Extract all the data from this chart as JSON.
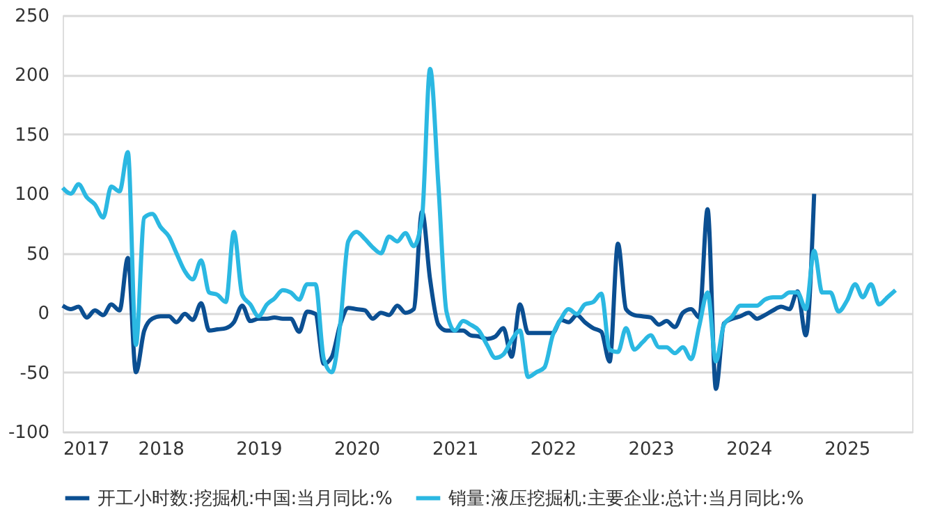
{
  "chart_data": {
    "type": "line",
    "x": [
      "2017-01",
      "2017-02",
      "2017-03",
      "2017-04",
      "2017-05",
      "2017-06",
      "2017-07",
      "2017-08",
      "2017-09",
      "2017-10",
      "2017-11",
      "2017-12",
      "2018-01",
      "2018-02",
      "2018-03",
      "2018-04",
      "2018-05",
      "2018-06",
      "2018-07",
      "2018-08",
      "2018-09",
      "2018-10",
      "2018-11",
      "2018-12",
      "2019-01",
      "2019-02",
      "2019-03",
      "2019-04",
      "2019-05",
      "2019-06",
      "2019-07",
      "2019-08",
      "2019-09",
      "2019-10",
      "2019-11",
      "2019-12",
      "2020-01",
      "2020-02",
      "2020-03",
      "2020-04",
      "2020-05",
      "2020-06",
      "2020-07",
      "2020-08",
      "2020-09",
      "2020-10",
      "2020-11",
      "2020-12",
      "2021-01",
      "2021-02",
      "2021-03",
      "2021-04",
      "2021-05",
      "2021-06",
      "2021-07",
      "2021-08",
      "2021-09",
      "2021-10",
      "2021-11",
      "2021-12",
      "2022-01",
      "2022-02",
      "2022-03",
      "2022-04",
      "2022-05",
      "2022-06",
      "2022-07",
      "2022-08",
      "2022-09",
      "2022-10",
      "2022-11",
      "2022-12",
      "2023-01",
      "2023-02",
      "2023-03",
      "2023-04",
      "2023-05",
      "2023-06",
      "2023-07",
      "2023-08",
      "2023-09",
      "2023-10",
      "2023-11",
      "2023-12",
      "2024-01",
      "2024-02",
      "2024-03",
      "2024-04",
      "2024-05",
      "2024-06",
      "2024-07",
      "2024-08",
      "2024-09",
      "2024-10",
      "2024-11",
      "2024-12",
      "2025-01",
      "2025-02",
      "2025-03",
      "2025-04",
      "2025-05",
      "2025-06",
      "2025-07"
    ],
    "series": [
      {
        "name": "开工小时数:挖掘机:中国:当月同比:%",
        "color": "#0b4f92",
        "values": [
          6,
          3,
          5,
          -4,
          2,
          -2,
          7,
          2,
          46,
          -50,
          -15,
          -5,
          -3,
          -3,
          -8,
          -1,
          -6,
          8,
          -15,
          -14,
          -13,
          -8,
          6,
          -7,
          -5,
          -5,
          -4,
          -5,
          -5,
          -16,
          1,
          -1,
          -43,
          -37,
          -10,
          4,
          3,
          2,
          -5,
          0,
          -2,
          6,
          0,
          3,
          85,
          28,
          -10,
          -15,
          -15,
          -15,
          -19,
          -20,
          -22,
          -20,
          -13,
          -37,
          7,
          -17,
          -17,
          -17,
          -17,
          -6,
          -8,
          -2,
          -8,
          -13,
          -16,
          -41,
          58,
          3,
          -2,
          -3,
          -4,
          -10,
          -7,
          -12,
          0,
          3,
          -4,
          87,
          -64,
          -9,
          -5,
          -3,
          0,
          -5,
          -2,
          2,
          5,
          3,
          18,
          -19,
          100,
          null,
          null,
          null,
          null,
          null,
          null,
          null,
          null,
          null,
          null
        ]
      },
      {
        "name": "销量:液压挖掘机:主要企业:总计:当月同比:%",
        "color": "#2bb8e2",
        "values": [
          105,
          100,
          108,
          97,
          91,
          80,
          106,
          102,
          135,
          -27,
          80,
          83,
          72,
          64,
          50,
          35,
          28,
          44,
          17,
          15,
          9,
          68,
          15,
          7,
          -3,
          7,
          12,
          19,
          17,
          11,
          24,
          24,
          -39,
          -50,
          -10,
          60,
          68,
          62,
          55,
          50,
          64,
          60,
          67,
          56,
          80,
          205,
          107,
          1,
          -15,
          -7,
          -10,
          -15,
          -27,
          -38,
          -35,
          -23,
          -15,
          -54,
          -50,
          -46,
          -19,
          -5,
          3,
          -1,
          7,
          9,
          16,
          -31,
          -33,
          -13,
          -31,
          -25,
          -19,
          -29,
          -29,
          -34,
          -29,
          -39,
          -11,
          17,
          -41,
          -10,
          -3,
          6,
          6,
          6,
          11,
          13,
          13,
          17,
          17,
          3,
          52,
          17,
          17,
          1,
          10,
          24,
          13,
          24,
          7,
          13,
          19
        ]
      }
    ],
    "xlim": [
      "2017-01",
      "2025-09"
    ],
    "xticks": [
      "2017",
      "2018",
      "2019",
      "2020",
      "2021",
      "2022",
      "2023",
      "2024",
      "2025"
    ],
    "ylim": [
      -100,
      250
    ],
    "yticks": [
      -100,
      -50,
      0,
      50,
      100,
      150,
      200,
      250
    ],
    "grid": "y",
    "legend": "bottom",
    "line_style": "solid",
    "marker": "none"
  }
}
